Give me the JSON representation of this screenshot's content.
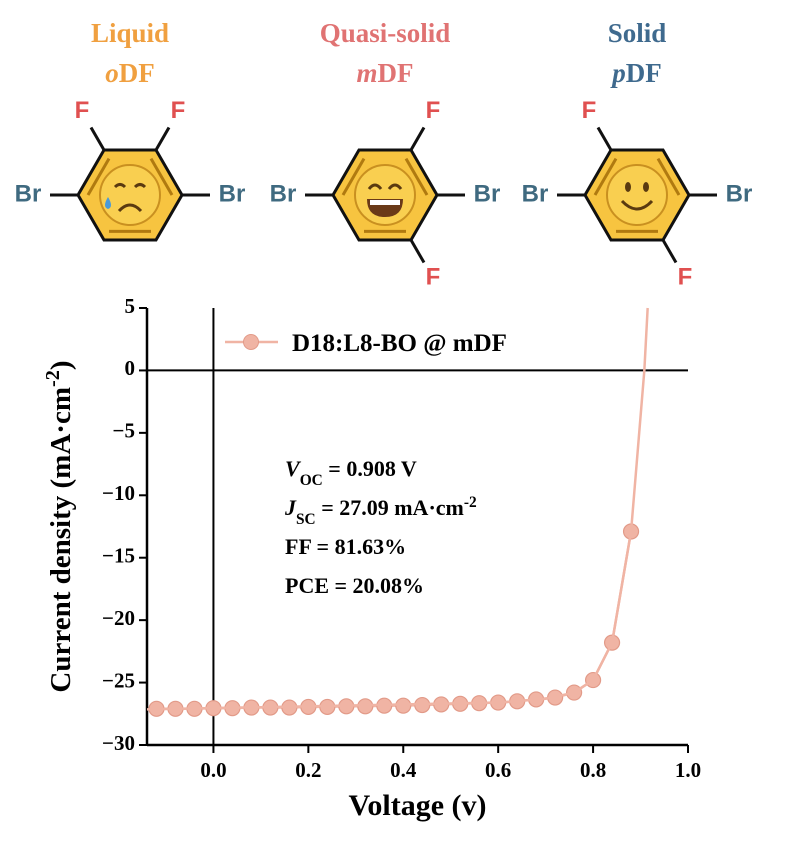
{
  "molecules": [
    {
      "state": "Liquid",
      "prefix": "o",
      "suffix": "DF",
      "atoms": [
        "F",
        "F",
        "Br",
        "Br"
      ],
      "color": "#f0a040"
    },
    {
      "state": "Quasi-solid",
      "prefix": "m",
      "suffix": "DF",
      "atoms": [
        "F",
        "F",
        "Br",
        "Br"
      ],
      "color": "#e07373"
    },
    {
      "state": "Solid",
      "prefix": "p",
      "suffix": "DF",
      "atoms": [
        "F",
        "F",
        "Br",
        "Br"
      ],
      "color": "#3f6a8e"
    }
  ],
  "chart_data": {
    "type": "line",
    "xlabel": "Voltage (v)",
    "ylabel": [
      {
        "text": "Current density (mA·cm"
      },
      {
        "text": "-2",
        "format": "sup"
      },
      {
        "text": ")"
      }
    ],
    "xlim": [
      -0.14,
      1.0
    ],
    "ylim": [
      -30,
      5
    ],
    "xticks": [
      {
        "value": 0,
        "label": "0.0"
      },
      0.2,
      0.4,
      0.6,
      0.8,
      {
        "value": 1,
        "label": "1.0"
      }
    ],
    "yticks": [
      5,
      0,
      {
        "value": -5,
        "label": "−5"
      },
      {
        "value": -10,
        "label": "−10"
      },
      {
        "value": -15,
        "label": "−15"
      },
      {
        "value": -20,
        "label": "−20"
      },
      {
        "value": -25,
        "label": "−25"
      },
      {
        "value": -30,
        "label": "−30"
      }
    ],
    "series": [
      {
        "name": "D18:L8-BO @ mDF",
        "color": "#f0b4a4",
        "marker": true,
        "x": [
          -0.12,
          -0.08,
          -0.04,
          0,
          0.04,
          0.08,
          0.12,
          0.16,
          0.2,
          0.24,
          0.28,
          0.32,
          0.36,
          0.4,
          0.44,
          0.48,
          0.52,
          0.56,
          0.6,
          0.64,
          0.68,
          0.72,
          0.76,
          0.8,
          0.84,
          0.88
        ],
        "values": [
          -27.1,
          -27.1,
          -27.1,
          -27.05,
          -27.05,
          -27.0,
          -27.0,
          -27.0,
          -26.95,
          -26.95,
          -26.9,
          -26.9,
          -26.85,
          -26.85,
          -26.8,
          -26.75,
          -26.7,
          -26.65,
          -26.6,
          -26.5,
          -26.35,
          -26.2,
          -25.8,
          -24.8,
          -21.8,
          -12.9
        ]
      },
      {
        "color": "#f0b4a4",
        "marker": false,
        "x": [
          -0.14,
          0.6,
          0.7,
          0.76,
          0.8,
          0.84,
          0.88,
          0.895,
          0.908,
          0.915
        ],
        "values": [
          -27.15,
          -26.6,
          -26.3,
          -25.8,
          -24.8,
          -21.8,
          -12.9,
          -6,
          0,
          5
        ]
      }
    ],
    "annotations": [
      [
        {
          "text": "V",
          "format": "italic"
        },
        {
          "text": "OC",
          "format": "sub"
        },
        {
          "text": " = 0.908 V"
        }
      ],
      [
        {
          "text": "J",
          "format": "italic"
        },
        {
          "text": "SC",
          "format": "sub"
        },
        {
          "text": " = 27.09 mA·cm"
        },
        {
          "text": "-2",
          "format": "sup"
        }
      ],
      [
        {
          "text": "FF = 81.63%"
        }
      ],
      [
        {
          "text": "PCE = 20.08%"
        }
      ]
    ]
  }
}
